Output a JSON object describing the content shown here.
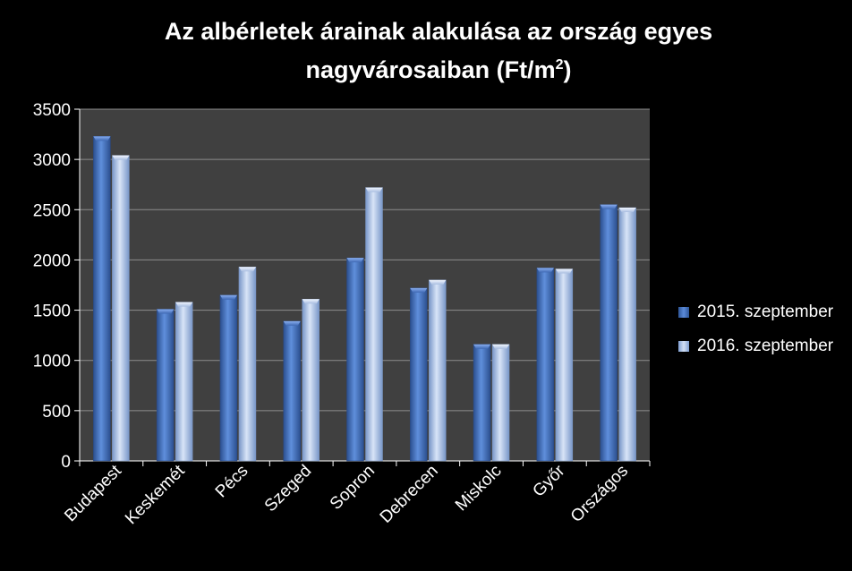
{
  "colors": {
    "background": "#000000",
    "plot_area": "#404040",
    "gridline": "#8c8c8c",
    "series_2015": "#4472c4",
    "series_2016": "#a6bfe6"
  },
  "chart_data": {
    "type": "bar",
    "title": "Az albérletek árainak alakulása az ország egyes",
    "title_line2": "nagyvárosaiban (Ft/m",
    "title_superscript": "2",
    "title_end": ")",
    "xlabel": "",
    "ylabel": "",
    "ylim": [
      0,
      3500
    ],
    "yticks": [
      0,
      500,
      1000,
      1500,
      2000,
      2500,
      3000,
      3500
    ],
    "grid": true,
    "legend_position": "right",
    "categories": [
      "Budapest",
      "Keskemét",
      "Pécs",
      "Szeged",
      "Sopron",
      "Debrecen",
      "Miskolc",
      "Győr",
      "Országos"
    ],
    "series": [
      {
        "name": "2015. szeptember",
        "values": [
          3230,
          1510,
          1650,
          1390,
          2020,
          1720,
          1160,
          1920,
          2550
        ]
      },
      {
        "name": "2016. szeptember",
        "values": [
          3040,
          1580,
          1930,
          1610,
          2720,
          1800,
          1160,
          1910,
          2520
        ]
      }
    ]
  }
}
